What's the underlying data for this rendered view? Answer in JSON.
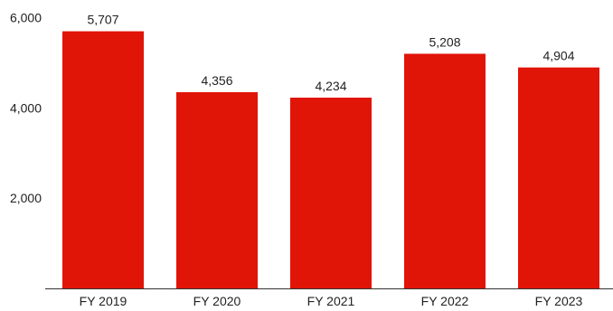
{
  "chart_data": {
    "type": "bar",
    "title": "",
    "xlabel": "",
    "ylabel": "",
    "categories": [
      "FY 2019",
      "FY 2020",
      "FY 2021",
      "FY 2022",
      "FY 2023"
    ],
    "values": [
      5707,
      4356,
      4234,
      5208,
      4904
    ],
    "value_labels": [
      "5,707",
      "4,356",
      "4,234",
      "5,208",
      "4,904"
    ],
    "ylim": [
      0,
      6000
    ],
    "y_ticks": [
      2000,
      4000,
      6000
    ],
    "y_tick_labels": [
      "2,000",
      "4,000",
      "6,000"
    ],
    "grid": false,
    "bar_color": "#e01407",
    "axis_color": "#333333"
  }
}
